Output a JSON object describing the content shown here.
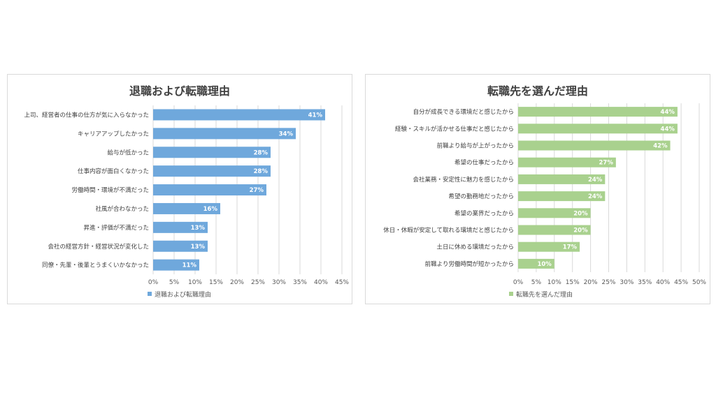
{
  "chart_data": [
    {
      "type": "bar",
      "orientation": "horizontal",
      "title": "退職および転職理由",
      "categories": [
        "上司、経営者の仕事の仕方が気に入らなかった",
        "キャリアアップしたかった",
        "給与が低かった",
        "仕事内容が面白くなかった",
        "労働時間・環境が不満だった",
        "社風が合わなかった",
        "昇進・評価が不満だった",
        "会社の経営方針・経営状況が変化した",
        "同僚・先輩・後輩とうまくいかなかった"
      ],
      "series": [
        {
          "name": "退職および転職理由",
          "values": [
            41,
            34,
            28,
            28,
            27,
            16,
            13,
            13,
            11
          ],
          "color": "#6fa8dc"
        }
      ],
      "data_labels": [
        "41%",
        "34%",
        "28%",
        "28%",
        "27%",
        "16%",
        "13%",
        "13%",
        "11%"
      ],
      "xlim": [
        0,
        45
      ],
      "xticks": [
        "0%",
        "5%",
        "10%",
        "15%",
        "20%",
        "25%",
        "30%",
        "35%",
        "40%",
        "45%"
      ],
      "grid": true,
      "legend": "bottom-left"
    },
    {
      "type": "bar",
      "orientation": "horizontal",
      "title": "転職先を選んだ理由",
      "categories": [
        "自分が成長できる環境だと感じたから",
        "経験・スキルが活かせる仕事だと感じたから",
        "前職より給与が上がったから",
        "希望の仕事だったから",
        "会社業務・安定性に魅力を感じたから",
        "希望の勤務地だったから",
        "希望の業界だったから",
        "休日・休暇が安定して取れる環境だと感じたから",
        "土日に休める環境だったから",
        "前職より労働時間が短かったから"
      ],
      "series": [
        {
          "name": "転職先を選んだ理由",
          "values": [
            44,
            44,
            42,
            27,
            24,
            24,
            20,
            20,
            17,
            10
          ],
          "color": "#a9d18e"
        }
      ],
      "data_labels": [
        "44%",
        "44%",
        "42%",
        "27%",
        "24%",
        "24%",
        "20%",
        "20%",
        "17%",
        "10%"
      ],
      "xlim": [
        0,
        50
      ],
      "xticks": [
        "0%",
        "5%",
        "10%",
        "15%",
        "20%",
        "25%",
        "30%",
        "35%",
        "40%",
        "45%",
        "50%"
      ],
      "grid": true,
      "legend": "bottom-left"
    }
  ]
}
